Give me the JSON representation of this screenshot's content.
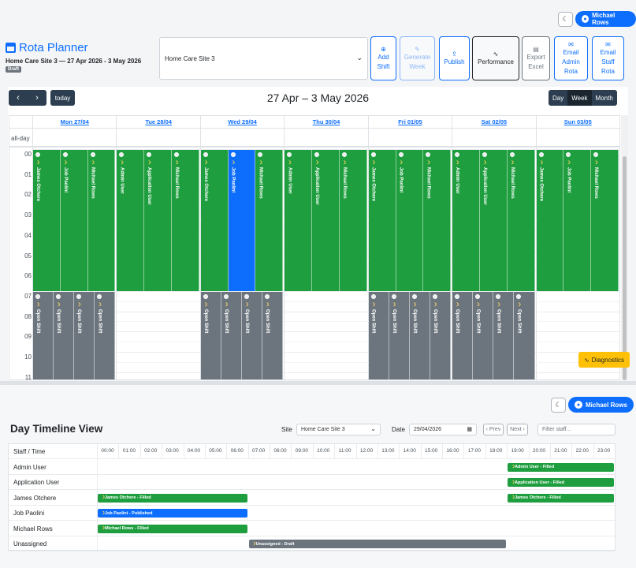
{
  "header": {
    "user_name": "Michael Rows",
    "theme_icon": "moon-icon"
  },
  "planner": {
    "title": "Rota Planner",
    "subtitle": "Home Care Site 3 — 27 Apr 2026 - 3 May 2026",
    "status_badge": "Draft",
    "site_value": "Home Care Site 3",
    "toolbar": [
      {
        "icon": "plus-circle-icon",
        "glyph": "⊕",
        "label": "Add Shift",
        "l1": "Add",
        "l2": "Shift",
        "state": "primary"
      },
      {
        "icon": "wand-icon",
        "glyph": "✎",
        "label": "Generate Week",
        "l1": "Generate",
        "l2": "Week",
        "state": "disabled"
      },
      {
        "icon": "upload-icon",
        "glyph": "⇪",
        "label": "Publish",
        "l1": "Publish",
        "l2": "",
        "state": "primary"
      },
      {
        "icon": "activity-icon",
        "glyph": "∿",
        "label": "Performance",
        "l1": "Performance",
        "l2": "",
        "state": "dark"
      },
      {
        "icon": "file-icon",
        "glyph": "▤",
        "label": "Export Excel",
        "l1": "Export",
        "l2": "Excel",
        "state": "grey"
      },
      {
        "icon": "envelope-icon",
        "glyph": "✉",
        "label": "Email Admin Rota",
        "l1": "Email",
        "l2": "Admin",
        "l3": "Rota",
        "state": "primary"
      },
      {
        "icon": "envelope-icon",
        "glyph": "✉",
        "label": "Email Staff Rota",
        "l1": "Email",
        "l2": "Staff",
        "l3": "Rota",
        "state": "primary"
      }
    ]
  },
  "calendar": {
    "title": "27 Apr – 3 May 2026",
    "today_label": "today",
    "prev_glyph": "‹",
    "next_glyph": "›",
    "views": [
      "Day",
      "Week",
      "Month"
    ],
    "active_view": "Week",
    "allday_label": "all-day",
    "days": [
      "Mon 27/04",
      "Tue 28/04",
      "Wed 29/04",
      "Thu 30/04",
      "Fri 01/05",
      "Sat 02/05",
      "Sun 03/05"
    ],
    "hours": [
      "00",
      "01",
      "02",
      "03",
      "04",
      "05",
      "06",
      "07",
      "08",
      "09",
      "10",
      "11"
    ],
    "night_shifts": [
      [
        {
          "name": "James Otchere",
          "color": "green"
        },
        {
          "name": "Job Paolini",
          "color": "green"
        },
        {
          "name": "Michael Rows",
          "color": "green"
        }
      ],
      [
        {
          "name": "Admin User",
          "color": "green"
        },
        {
          "name": "Application User",
          "color": "green"
        },
        {
          "name": "Michael Rows",
          "color": "green"
        }
      ],
      [
        {
          "name": "James Otchere",
          "color": "green"
        },
        {
          "name": "Job Paolini",
          "color": "blue"
        },
        {
          "name": "Michael Rows",
          "color": "green"
        }
      ],
      [
        {
          "name": "Admin User",
          "color": "green"
        },
        {
          "name": "Application User",
          "color": "green"
        },
        {
          "name": "Michael Rows",
          "color": "green"
        }
      ],
      [
        {
          "name": "James Otchere",
          "color": "green"
        },
        {
          "name": "Job Paolini",
          "color": "green"
        },
        {
          "name": "Michael Rows",
          "color": "green"
        }
      ],
      [
        {
          "name": "Admin User",
          "color": "green"
        },
        {
          "name": "Application User",
          "color": "green"
        },
        {
          "name": "Michael Rows",
          "color": "green"
        }
      ],
      [
        {
          "name": "James Otchere",
          "color": "green"
        },
        {
          "name": "Job Paolini",
          "color": "green"
        },
        {
          "name": "Michael Rows",
          "color": "green"
        }
      ]
    ],
    "open_shift_label": "Open Shift",
    "open_shift_days": [
      0,
      2,
      4,
      5
    ],
    "diagnostics_label": "Diagnostics"
  },
  "timeline": {
    "title": "Day Timeline View",
    "site_label": "Site",
    "site_value": "Home Care Site 3",
    "date_label": "Date",
    "date_value": "29/04/2026",
    "prev_label": "‹ Prev",
    "next_label": "Next ›",
    "filter_placeholder": "Filter staff...",
    "col_header": "Staff / Time",
    "hours": [
      "00:00",
      "01:00",
      "02:00",
      "03:00",
      "04:00",
      "05:00",
      "06:00",
      "07:00",
      "08:00",
      "09:00",
      "10:00",
      "11:00",
      "12:00",
      "13:00",
      "14:00",
      "15:00",
      "16:00",
      "17:00",
      "18:00",
      "19:00",
      "20:00",
      "21:00",
      "22:00",
      "23:00"
    ],
    "rows": [
      {
        "name": "Admin User",
        "bars": [
          {
            "label": "Admin User - Filled",
            "start": 19,
            "end": 24,
            "color": "green"
          }
        ]
      },
      {
        "name": "Application User",
        "bars": [
          {
            "label": "Application User - Filled",
            "start": 19,
            "end": 24,
            "color": "green"
          }
        ]
      },
      {
        "name": "James Otchere",
        "bars": [
          {
            "label": "James Otchere - Filled",
            "start": 0,
            "end": 7,
            "color": "green"
          },
          {
            "label": "James Otchere - Filled",
            "start": 19,
            "end": 24,
            "color": "green"
          }
        ]
      },
      {
        "name": "Job Paolini",
        "bars": [
          {
            "label": "Job Paolini - Published",
            "start": 0,
            "end": 7,
            "color": "blue"
          }
        ]
      },
      {
        "name": "Michael Rows",
        "bars": [
          {
            "label": "Michael Rows - Filled",
            "start": 0,
            "end": 7,
            "color": "green"
          }
        ]
      },
      {
        "name": "Unassigned",
        "bars": [
          {
            "label": "Unassigned - Draft",
            "start": 7,
            "end": 19,
            "color": "grey"
          }
        ]
      }
    ]
  },
  "colors": {
    "primary": "#0d6efd",
    "filled": "#1e9e3e",
    "draft": "#6c757d",
    "warning": "#ffc107",
    "dark": "#2c3e50"
  }
}
